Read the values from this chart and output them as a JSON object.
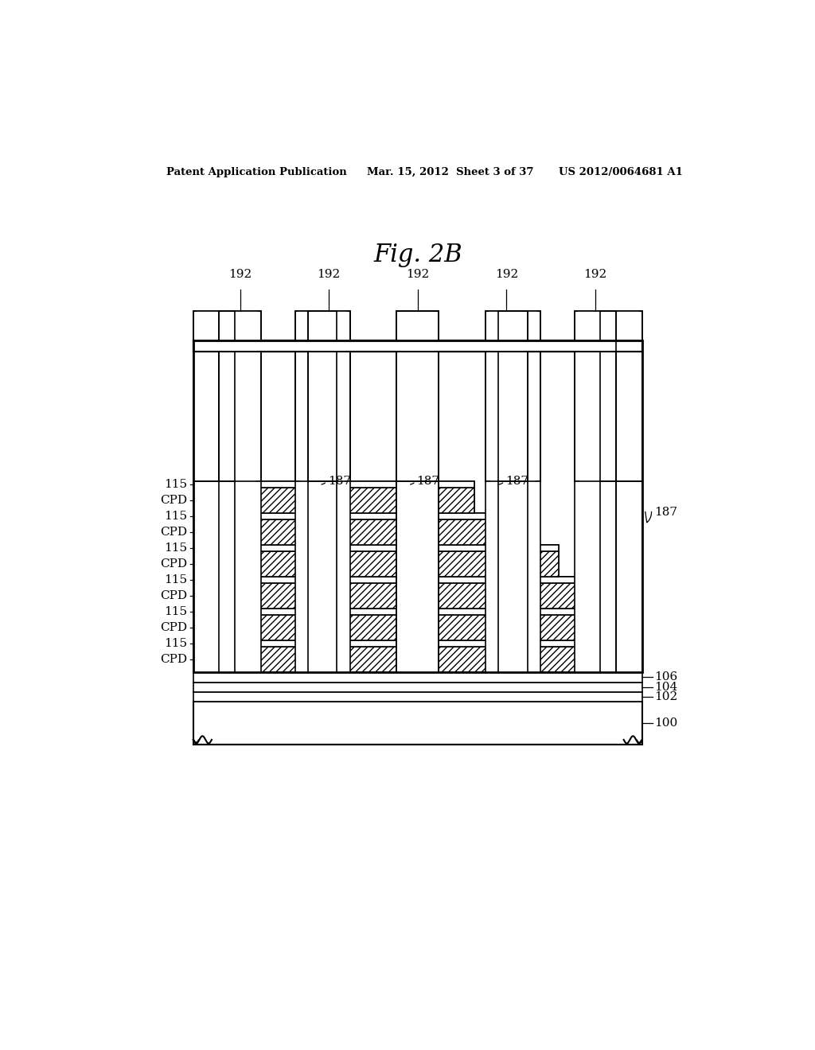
{
  "header_left": "Patent Application Publication",
  "header_mid": "Mar. 15, 2012  Sheet 3 of 37",
  "header_right": "US 2012/0064681 A1",
  "fig_title": "Fig. 2B",
  "bg_color": "#ffffff"
}
